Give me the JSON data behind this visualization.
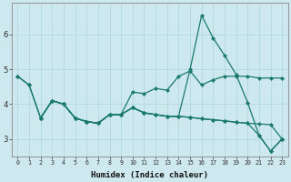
{
  "xlabel": "Humidex (Indice chaleur)",
  "bg_color": "#cde8ee",
  "grid_color": "#b0d8e0",
  "line_color": "#1a7a6e",
  "xlim": [
    -0.5,
    23.5
  ],
  "ylim": [
    2.5,
    6.9
  ],
  "yticks": [
    3,
    4,
    5,
    6
  ],
  "xticks": [
    0,
    1,
    2,
    3,
    4,
    5,
    6,
    7,
    8,
    9,
    10,
    11,
    12,
    13,
    14,
    15,
    16,
    17,
    18,
    19,
    20,
    21,
    22,
    23
  ],
  "lines": [
    {
      "x": [
        0,
        1,
        2,
        3,
        4,
        5,
        6,
        7,
        8,
        9,
        10,
        11,
        12,
        13,
        14,
        15,
        16,
        17,
        18,
        19,
        20,
        21,
        22,
        23
      ],
      "y": [
        4.8,
        4.55,
        3.6,
        4.1,
        4.0,
        3.6,
        3.5,
        3.45,
        3.7,
        3.7,
        4.35,
        4.3,
        4.45,
        4.4,
        4.8,
        4.95,
        4.55,
        4.7,
        4.8,
        4.8,
        4.8,
        4.75,
        4.75,
        4.75
      ]
    },
    {
      "x": [
        0,
        1,
        2,
        3,
        4,
        5,
        6,
        7,
        8,
        9,
        10,
        11,
        12,
        13,
        14,
        15,
        16,
        17,
        18,
        19,
        20,
        21,
        22,
        23
      ],
      "y": [
        4.8,
        4.55,
        3.6,
        4.1,
        4.0,
        3.6,
        3.5,
        3.45,
        3.7,
        3.7,
        3.9,
        3.75,
        3.7,
        3.65,
        3.65,
        5.0,
        6.55,
        5.9,
        5.4,
        4.85,
        4.05,
        3.1,
        2.65,
        3.0
      ]
    },
    {
      "x": [
        2,
        3,
        4,
        5,
        6,
        7,
        8,
        9,
        10,
        11,
        12,
        13,
        14,
        15,
        16,
        17,
        18,
        19,
        20,
        21,
        22,
        23
      ],
      "y": [
        3.6,
        4.1,
        4.0,
        3.6,
        3.5,
        3.45,
        3.7,
        3.7,
        3.9,
        3.75,
        3.7,
        3.65,
        3.65,
        3.62,
        3.58,
        3.55,
        3.52,
        3.48,
        3.45,
        3.1,
        2.65,
        3.0
      ]
    },
    {
      "x": [
        2,
        3,
        4,
        5,
        6,
        7,
        8,
        9,
        10,
        11,
        12,
        13,
        14,
        15,
        16,
        17,
        18,
        19,
        20,
        21,
        22,
        23
      ],
      "y": [
        3.6,
        4.1,
        4.0,
        3.6,
        3.5,
        3.45,
        3.7,
        3.7,
        3.9,
        3.75,
        3.7,
        3.65,
        3.65,
        3.62,
        3.58,
        3.55,
        3.52,
        3.48,
        3.45,
        3.43,
        3.41,
        3.0
      ]
    }
  ],
  "marker": "D",
  "markersize": 2.2,
  "linewidth": 0.9
}
